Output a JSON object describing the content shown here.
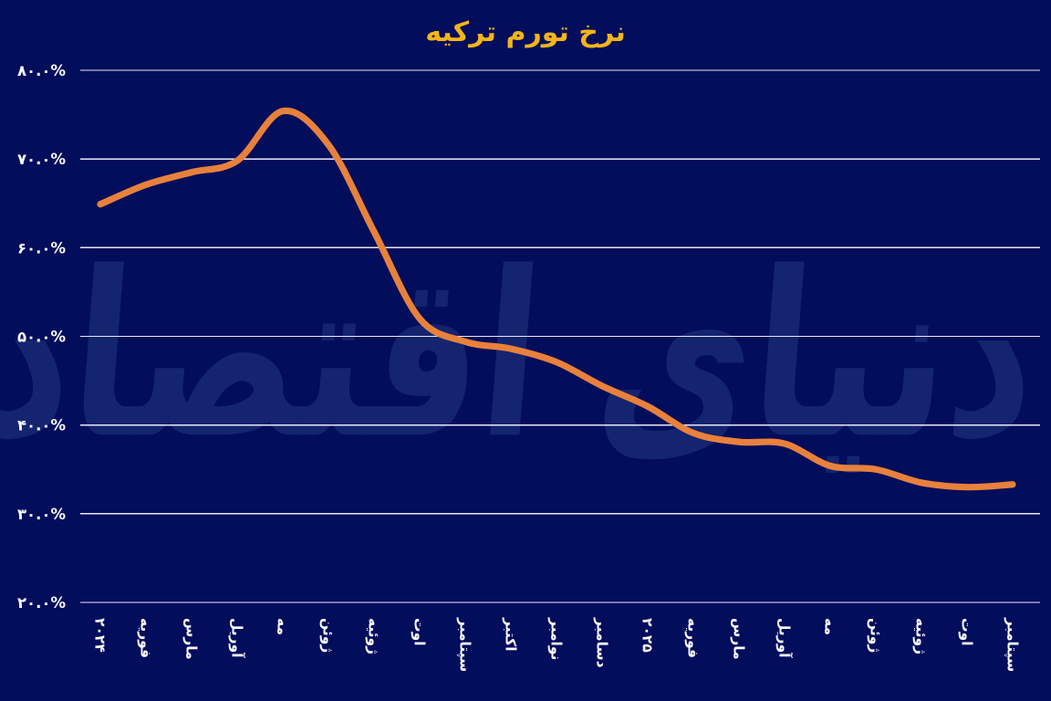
{
  "page": {
    "title": "نرخ تورم ترکیه"
  },
  "watermark": {
    "text": "دنیای اقتصاد"
  },
  "colors": {
    "background": "#020D5C",
    "line": "#E8813C",
    "title": "#F5B517",
    "grid": "#E8E8F2",
    "tick_label": "#FAFAFF",
    "watermark": "#14246F"
  },
  "chart_data": {
    "type": "line",
    "title": "نرخ تورم ترکیه",
    "xlabel": "",
    "ylabel": "",
    "ylim": [
      20,
      80
    ],
    "grid": "horizontal",
    "legend": "none",
    "categories": [
      "۲۰۲۴",
      "فوریه",
      "مارس",
      "آوریل",
      "مه",
      "ژوئن",
      "ژوئیه",
      "اوت",
      "سپتامبر",
      "اکتبر",
      "نوامبر",
      "دسامبر",
      "۲۰۲۵",
      "فوریه",
      "مارس",
      "آوریل",
      "مه",
      "ژوئن",
      "ژوئیه",
      "اوت",
      "سپتامبر"
    ],
    "series": [
      {
        "name": "نرخ تورم ترکیه",
        "values": [
          64.9,
          67.1,
          68.5,
          69.8,
          75.4,
          71.6,
          61.8,
          52.0,
          49.4,
          48.6,
          47.1,
          44.4,
          42.1,
          39.1,
          38.1,
          37.9,
          35.4,
          35.0,
          33.5,
          33.0,
          33.3
        ]
      }
    ],
    "y_ticks": [
      {
        "value": 80,
        "label": "۸۰.۰%"
      },
      {
        "value": 70,
        "label": "۷۰.۰%"
      },
      {
        "value": 60,
        "label": "۶۰.۰%"
      },
      {
        "value": 50,
        "label": "۵۰.۰%"
      },
      {
        "value": 40,
        "label": "۴۰.۰%"
      },
      {
        "value": 30,
        "label": "۳۰.۰%"
      },
      {
        "value": 20,
        "label": "۲۰.۰%"
      }
    ]
  }
}
